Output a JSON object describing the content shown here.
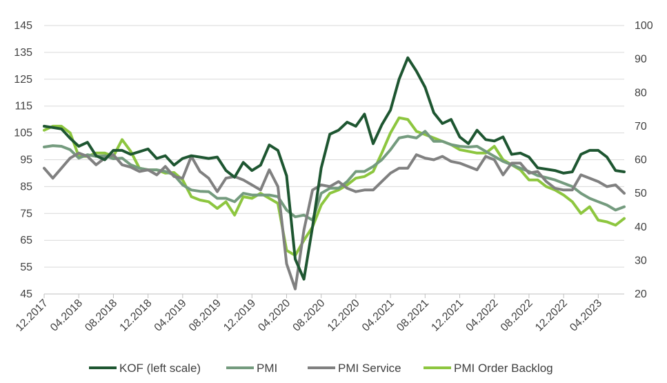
{
  "chart_data": {
    "type": "line",
    "x": [
      "12.2017",
      "01.2018",
      "02.2018",
      "03.2018",
      "04.2018",
      "05.2018",
      "06.2018",
      "07.2018",
      "08.2018",
      "09.2018",
      "10.2018",
      "11.2018",
      "12.2018",
      "01.2019",
      "02.2019",
      "03.2019",
      "04.2019",
      "05.2019",
      "06.2019",
      "07.2019",
      "08.2019",
      "09.2019",
      "10.2019",
      "11.2019",
      "12.2019",
      "01.2020",
      "02.2020",
      "03.2020",
      "04.2020",
      "05.2020",
      "06.2020",
      "07.2020",
      "08.2020",
      "09.2020",
      "10.2020",
      "11.2020",
      "12.2020",
      "01.2021",
      "02.2021",
      "03.2021",
      "04.2021",
      "05.2021",
      "06.2021",
      "07.2021",
      "08.2021",
      "09.2021",
      "10.2021",
      "11.2021",
      "12.2021",
      "01.2022",
      "02.2022",
      "03.2022",
      "04.2022",
      "05.2022",
      "06.2022",
      "07.2022",
      "08.2022",
      "09.2022",
      "10.2022",
      "11.2022",
      "12.2022",
      "01.2023",
      "02.2023",
      "03.2023",
      "04.2023",
      "05.2023",
      "06.2023",
      "07.2023"
    ],
    "x_tick_labels": [
      "12.2017",
      "04.2018",
      "08.2018",
      "12.2018",
      "04.2019",
      "08.2019",
      "12.2019",
      "04.2020",
      "08.2020",
      "12.2020",
      "04.2021",
      "08.2021",
      "12.2021",
      "04.2022",
      "08.2022",
      "12.2022",
      "04.2023"
    ],
    "y_left": {
      "ylim": [
        45,
        145
      ],
      "ticks": [
        "45",
        "55",
        "65",
        "75",
        "85",
        "95",
        "105",
        "115",
        "125",
        "135",
        "145"
      ]
    },
    "y_right": {
      "ylim": [
        20,
        100
      ],
      "ticks": [
        "20",
        "30",
        "40",
        "50",
        "60",
        "70",
        "80",
        "90",
        "100"
      ]
    },
    "grid": "horizontal",
    "legend_position": "bottom",
    "series": [
      {
        "name": "KOF (left scale)",
        "axis": "left",
        "color": "#1e5631",
        "values": [
          107.5,
          107,
          106.5,
          103,
          100,
          101.5,
          96.5,
          95,
          98.5,
          98.5,
          97,
          98,
          99,
          95.5,
          96.5,
          93,
          95.5,
          96.5,
          96,
          95.5,
          96,
          91,
          88.5,
          94,
          91,
          93,
          100.5,
          98.5,
          89,
          58,
          50.5,
          70,
          92,
          104.5,
          106,
          109,
          107.5,
          112,
          101,
          108,
          113.5,
          125,
          133,
          128,
          122,
          112.5,
          108.5,
          110,
          103.5,
          101,
          106,
          102.5,
          102,
          103.5,
          97,
          97.5,
          96,
          92,
          91.5,
          91,
          90,
          90.5,
          97,
          98.5,
          98.5,
          96,
          91,
          90.5
        ]
      },
      {
        "name": "PMI",
        "axis": "right",
        "color": "#749b7e",
        "values": [
          63.8,
          64.2,
          64,
          63,
          60.5,
          61.5,
          61,
          61.2,
          60.3,
          60.5,
          58.5,
          57.5,
          57,
          57,
          56.5,
          55.5,
          52.5,
          51,
          50.6,
          50.5,
          48.5,
          48.5,
          47.5,
          50,
          49.5,
          49.5,
          49.5,
          49,
          45,
          43,
          43.5,
          42,
          50,
          51.5,
          51.5,
          53.5,
          56.5,
          56.5,
          58,
          60,
          63,
          66.5,
          67,
          66.5,
          68.5,
          65.5,
          65.5,
          64.5,
          64,
          63.8,
          64,
          62.5,
          61,
          59.5,
          58.5,
          57.5,
          56.5,
          55.3,
          54.7,
          54,
          53,
          52,
          50,
          48.5,
          47.5,
          46.5,
          45,
          46
        ]
      },
      {
        "name": "PMI Service",
        "axis": "right",
        "color": "#808080",
        "values": [
          57.5,
          54.5,
          57.5,
          60.5,
          62,
          61,
          58.5,
          60.5,
          61.5,
          58.5,
          57.8,
          56.5,
          57,
          55.5,
          58,
          55,
          54.5,
          61,
          56.5,
          54.5,
          50.5,
          54.5,
          55,
          54,
          52.5,
          51,
          57,
          52,
          29,
          21.5,
          39,
          51,
          52.5,
          52,
          53.5,
          51.5,
          50.5,
          51,
          51,
          53.5,
          56,
          57.5,
          57.5,
          61.5,
          60.5,
          60,
          61,
          59.5,
          59,
          58,
          57,
          61,
          60,
          55.5,
          59,
          59,
          56,
          56.5,
          53.5,
          51.5,
          51,
          51,
          55.5,
          54.5,
          53.5,
          52,
          52.5,
          50
        ]
      },
      {
        "name": "PMI Order Backlog",
        "axis": "right",
        "color": "#8dc63f",
        "values": [
          68.8,
          70,
          70,
          68,
          61,
          61,
          62,
          62,
          61,
          66,
          62.5,
          57.5,
          57,
          57,
          56,
          56.2,
          54,
          49,
          48,
          47.5,
          45.5,
          47.5,
          43.5,
          49,
          48.5,
          50,
          48.5,
          47,
          33,
          31.5,
          36,
          40,
          46.5,
          50,
          51,
          52.5,
          54.5,
          55,
          56.5,
          62,
          68,
          72.5,
          72,
          68.5,
          67.5,
          66.5,
          65.5,
          64.5,
          63,
          62.5,
          62,
          62,
          64,
          60,
          58.5,
          57,
          54,
          54,
          52,
          51,
          49.5,
          47.5,
          44,
          46,
          42,
          41.5,
          40.5,
          42.5
        ]
      }
    ]
  }
}
